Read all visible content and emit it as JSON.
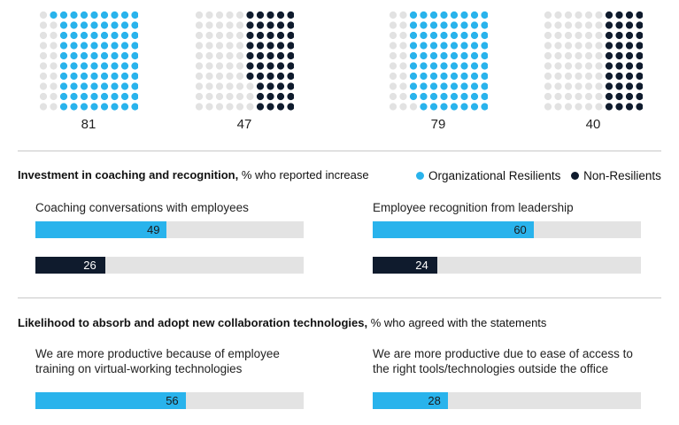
{
  "colors": {
    "resilient": "#29b3ec",
    "non_resilient": "#0f1b2d",
    "empty_dot": "#e2e2e2",
    "track": "#e3e3e3"
  },
  "legend": {
    "resilient": "Organizational Resilients",
    "non_resilient": "Non-Resilients"
  },
  "chart_data": [
    {
      "type": "waffle",
      "grid": "10x10",
      "panels": [
        {
          "group": "Organizational Resilients",
          "value": 81,
          "label": "81"
        },
        {
          "group": "Non-Resilients",
          "value": 47,
          "label": "47"
        },
        {
          "group": "Organizational Resilients",
          "value": 79,
          "label": "79"
        },
        {
          "group": "Non-Resilients",
          "value": 40,
          "label": "40"
        }
      ]
    },
    {
      "type": "bar",
      "title_bold": "Investment in coaching and recognition,",
      "title_rest": " % who reported increase",
      "xlim": [
        0,
        100
      ],
      "panels": [
        {
          "label": "Coaching conversations with employees",
          "bars": [
            {
              "group": "Organizational Resilients",
              "value": 49,
              "label": "49"
            },
            {
              "group": "Non-Resilients",
              "value": 26,
              "label": "26"
            }
          ]
        },
        {
          "label": "Employee recognition from leadership",
          "bars": [
            {
              "group": "Organizational Resilients",
              "value": 60,
              "label": "60"
            },
            {
              "group": "Non-Resilients",
              "value": 24,
              "label": "24"
            }
          ]
        }
      ]
    },
    {
      "type": "bar",
      "title_bold": "Likelihood to absorb and adopt new collaboration technologies,",
      "title_rest": " % who agreed with the statements",
      "xlim": [
        0,
        100
      ],
      "panels": [
        {
          "label_line1": "We are more productive because of employee",
          "label_line2": "training on virtual-working technologies",
          "bars": [
            {
              "group": "Organizational Resilients",
              "value": 56,
              "label": "56"
            }
          ]
        },
        {
          "label_line1": "We are more productive due to ease of access to",
          "label_line2": "the right tools/technologies outside the office",
          "bars": [
            {
              "group": "Organizational Resilients",
              "value": 28,
              "label": "28"
            }
          ]
        }
      ]
    }
  ]
}
